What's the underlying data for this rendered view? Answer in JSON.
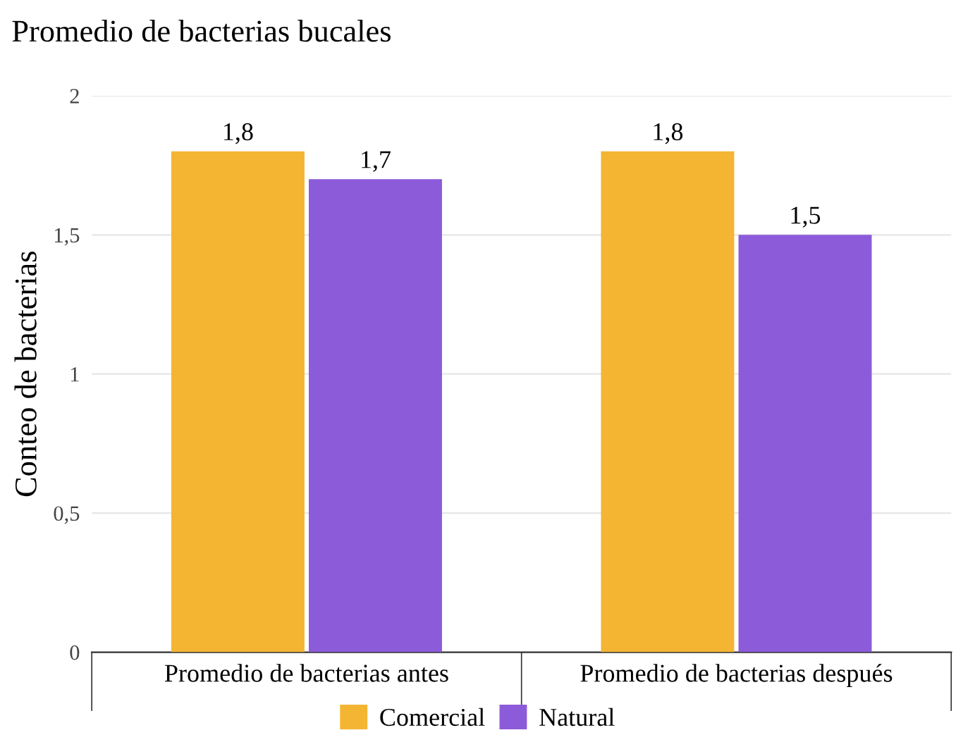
{
  "chart_data": {
    "type": "bar",
    "title": "Promedio de bacterias bucales",
    "ylabel": "Conteo de bacterias",
    "categories": [
      "Promedio de bacterias antes",
      "Promedio de bacterias después"
    ],
    "series": [
      {
        "name": "Comercial",
        "color": "#f4b533",
        "values": [
          1.8,
          1.8
        ],
        "value_labels": [
          "1,8",
          "1,8"
        ]
      },
      {
        "name": "Natural",
        "color": "#8c5bd9",
        "values": [
          1.7,
          1.5
        ],
        "value_labels": [
          "1,7",
          "1,5"
        ]
      }
    ],
    "ylim": [
      0,
      2
    ],
    "yticks": [
      0,
      {
        "value": 0.5,
        "label": "0,5"
      },
      1,
      {
        "value": 1.5,
        "label": "1,5"
      },
      2
    ],
    "grid": "y",
    "legend": "bottom"
  }
}
